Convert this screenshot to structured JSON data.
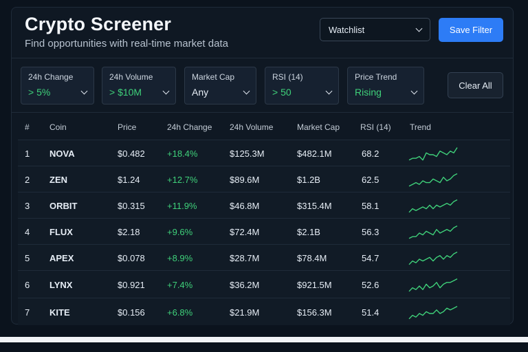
{
  "header": {
    "title": "Crypto Screener",
    "subtitle": "Find opportunities with real-time market data",
    "watchlist_label": "Watchlist",
    "save_label": "Save Filter"
  },
  "filters": [
    {
      "label": "24h Change",
      "value": "> 5%",
      "highlight": true
    },
    {
      "label": "24h Volume",
      "value": "> $10M",
      "highlight": true
    },
    {
      "label": "Market Cap",
      "value": "Any",
      "highlight": false
    },
    {
      "label": "RSI (14)",
      "value": "> 50",
      "highlight": true
    },
    {
      "label": "Price Trend",
      "value": "Rising",
      "highlight": true
    }
  ],
  "clear_label": "Clear All",
  "table": {
    "columns": [
      "#",
      "Coin",
      "Price",
      "24h Change",
      "24h Volume",
      "Market Cap",
      "RSI (14)",
      "Trend"
    ],
    "rows": [
      {
        "rank": "1",
        "coin": "NOVA",
        "price": "$0.482",
        "change": "+18.4%",
        "volume": "$125.3M",
        "mcap": "$482.1M",
        "rsi": "68.2"
      },
      {
        "rank": "2",
        "coin": "ZEN",
        "price": "$1.24",
        "change": "+12.7%",
        "volume": "$89.6M",
        "mcap": "$1.2B",
        "rsi": "62.5"
      },
      {
        "rank": "3",
        "coin": "ORBIT",
        "price": "$0.315",
        "change": "+11.9%",
        "volume": "$46.8M",
        "mcap": "$315.4M",
        "rsi": "58.1"
      },
      {
        "rank": "4",
        "coin": "FLUX",
        "price": "$2.18",
        "change": "+9.6%",
        "volume": "$72.4M",
        "mcap": "$2.1B",
        "rsi": "56.3"
      },
      {
        "rank": "5",
        "coin": "APEX",
        "price": "$0.078",
        "change": "+8.9%",
        "volume": "$28.7M",
        "mcap": "$78.4M",
        "rsi": "54.7"
      },
      {
        "rank": "6",
        "coin": "LYNX",
        "price": "$0.921",
        "change": "+7.4%",
        "volume": "$36.2M",
        "mcap": "$921.5M",
        "rsi": "52.6"
      },
      {
        "rank": "7",
        "coin": "KITE",
        "price": "$0.156",
        "change": "+6.8%",
        "volume": "$21.9M",
        "mcap": "$156.3M",
        "rsi": "51.4"
      }
    ]
  },
  "colors": {
    "accent": "#2d7cf6",
    "positive": "#3fd17a",
    "background": "#0b131d",
    "panel": "#0f1823"
  },
  "icons": {
    "dropdown": "chevron-down-icon",
    "trend": "sparkline-icon"
  }
}
